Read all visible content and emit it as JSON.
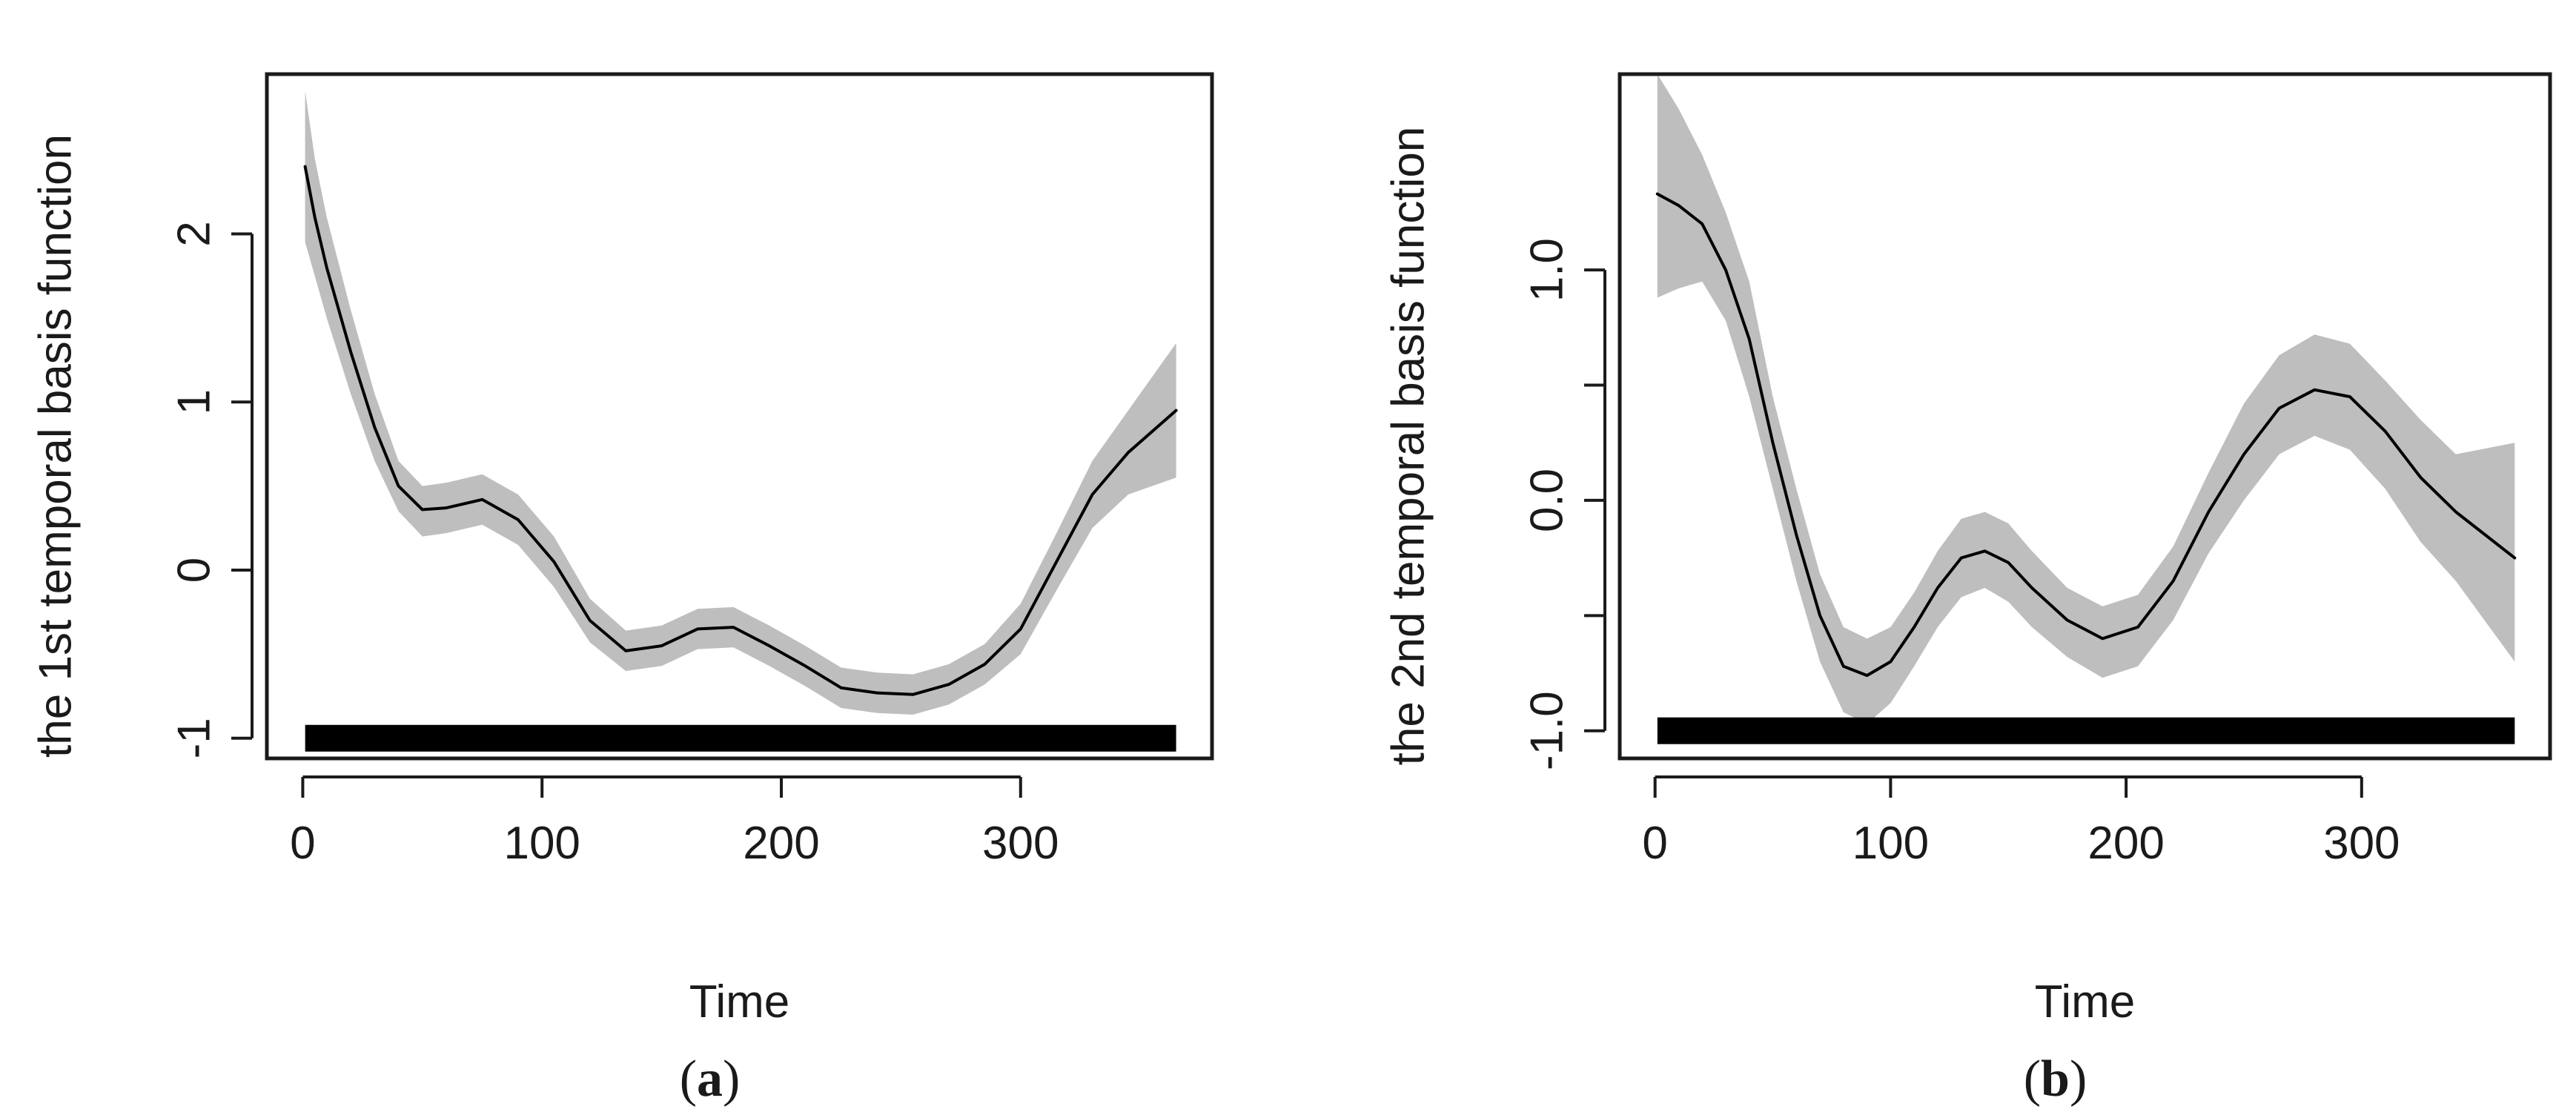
{
  "chart_data": [
    {
      "type": "line",
      "panel_label": "a",
      "xlabel": "Time",
      "ylabel": "the 1st temporal basis function",
      "xlim": [
        -15,
        380
      ],
      "ylim": [
        -1.12,
        2.95
      ],
      "xticks": [
        0,
        100,
        200,
        300
      ],
      "yticks": [
        -1,
        0,
        1,
        2
      ],
      "series": [
        {
          "x": [
            1,
            5,
            10,
            20,
            30,
            40,
            50,
            60,
            75,
            90,
            105,
            120,
            135,
            150,
            165,
            180,
            195,
            210,
            225,
            240,
            255,
            270,
            285,
            300,
            315,
            330,
            345,
            365
          ],
          "y": [
            2.4,
            2.1,
            1.8,
            1.3,
            0.85,
            0.5,
            0.36,
            0.37,
            0.42,
            0.3,
            0.05,
            -0.3,
            -0.48,
            -0.45,
            -0.35,
            -0.34,
            -0.45,
            -0.57,
            -0.7,
            -0.73,
            -0.74,
            -0.68,
            -0.56,
            -0.35,
            0.05,
            0.45,
            0.7,
            0.95
          ],
          "upper": [
            2.85,
            2.45,
            2.1,
            1.55,
            1.05,
            0.65,
            0.5,
            0.52,
            0.57,
            0.45,
            0.2,
            -0.17,
            -0.36,
            -0.33,
            -0.23,
            -0.22,
            -0.33,
            -0.45,
            -0.58,
            -0.61,
            -0.62,
            -0.56,
            -0.44,
            -0.2,
            0.22,
            0.65,
            0.95,
            1.35
          ],
          "lower": [
            1.95,
            1.75,
            1.5,
            1.05,
            0.65,
            0.35,
            0.2,
            0.22,
            0.27,
            0.15,
            -0.1,
            -0.43,
            -0.6,
            -0.57,
            -0.47,
            -0.46,
            -0.57,
            -0.69,
            -0.82,
            -0.85,
            -0.86,
            -0.8,
            -0.68,
            -0.5,
            -0.12,
            0.25,
            0.45,
            0.55
          ]
        }
      ],
      "rug": {
        "from": 1,
        "to": 365,
        "y": -1
      }
    },
    {
      "type": "line",
      "panel_label": "b",
      "xlabel": "Time",
      "ylabel": "the 2nd temporal basis function",
      "xlim": [
        -15,
        380
      ],
      "ylim": [
        -1.12,
        1.85
      ],
      "xticks": [
        0,
        100,
        200,
        300
      ],
      "yticks": [
        -1.0,
        -0.5,
        0.0,
        0.5,
        1.0
      ],
      "ytick_labels": [
        "-1.0",
        "",
        "0.0",
        "",
        "1.0"
      ],
      "series": [
        {
          "x": [
            1,
            10,
            20,
            30,
            40,
            50,
            60,
            70,
            80,
            90,
            100,
            110,
            120,
            130,
            140,
            150,
            160,
            175,
            190,
            205,
            220,
            235,
            250,
            265,
            280,
            295,
            310,
            325,
            340,
            365
          ],
          "y": [
            1.33,
            1.28,
            1.2,
            1.0,
            0.7,
            0.25,
            -0.15,
            -0.5,
            -0.72,
            -0.76,
            -0.7,
            -0.55,
            -0.38,
            -0.25,
            -0.22,
            -0.27,
            -0.38,
            -0.52,
            -0.6,
            -0.55,
            -0.35,
            -0.05,
            0.2,
            0.4,
            0.48,
            0.45,
            0.3,
            0.1,
            -0.05,
            -0.25
          ],
          "upper": [
            1.85,
            1.7,
            1.5,
            1.25,
            0.95,
            0.45,
            0.05,
            -0.32,
            -0.55,
            -0.6,
            -0.55,
            -0.4,
            -0.22,
            -0.08,
            -0.05,
            -0.1,
            -0.22,
            -0.38,
            -0.46,
            -0.41,
            -0.2,
            0.12,
            0.42,
            0.63,
            0.72,
            0.68,
            0.52,
            0.35,
            0.2,
            0.25
          ],
          "lower": [
            0.88,
            0.92,
            0.95,
            0.78,
            0.45,
            0.05,
            -0.35,
            -0.7,
            -0.92,
            -0.97,
            -0.88,
            -0.72,
            -0.55,
            -0.42,
            -0.38,
            -0.44,
            -0.55,
            -0.68,
            -0.77,
            -0.72,
            -0.52,
            -0.23,
            0.0,
            0.2,
            0.28,
            0.22,
            0.05,
            -0.18,
            -0.35,
            -0.7
          ]
        }
      ],
      "rug": {
        "from": 1,
        "to": 365,
        "y": -1
      }
    }
  ],
  "colors": {
    "band": "#bebebe",
    "line": "#000000",
    "axis": "#1a1a1a",
    "rug": "#000000"
  }
}
